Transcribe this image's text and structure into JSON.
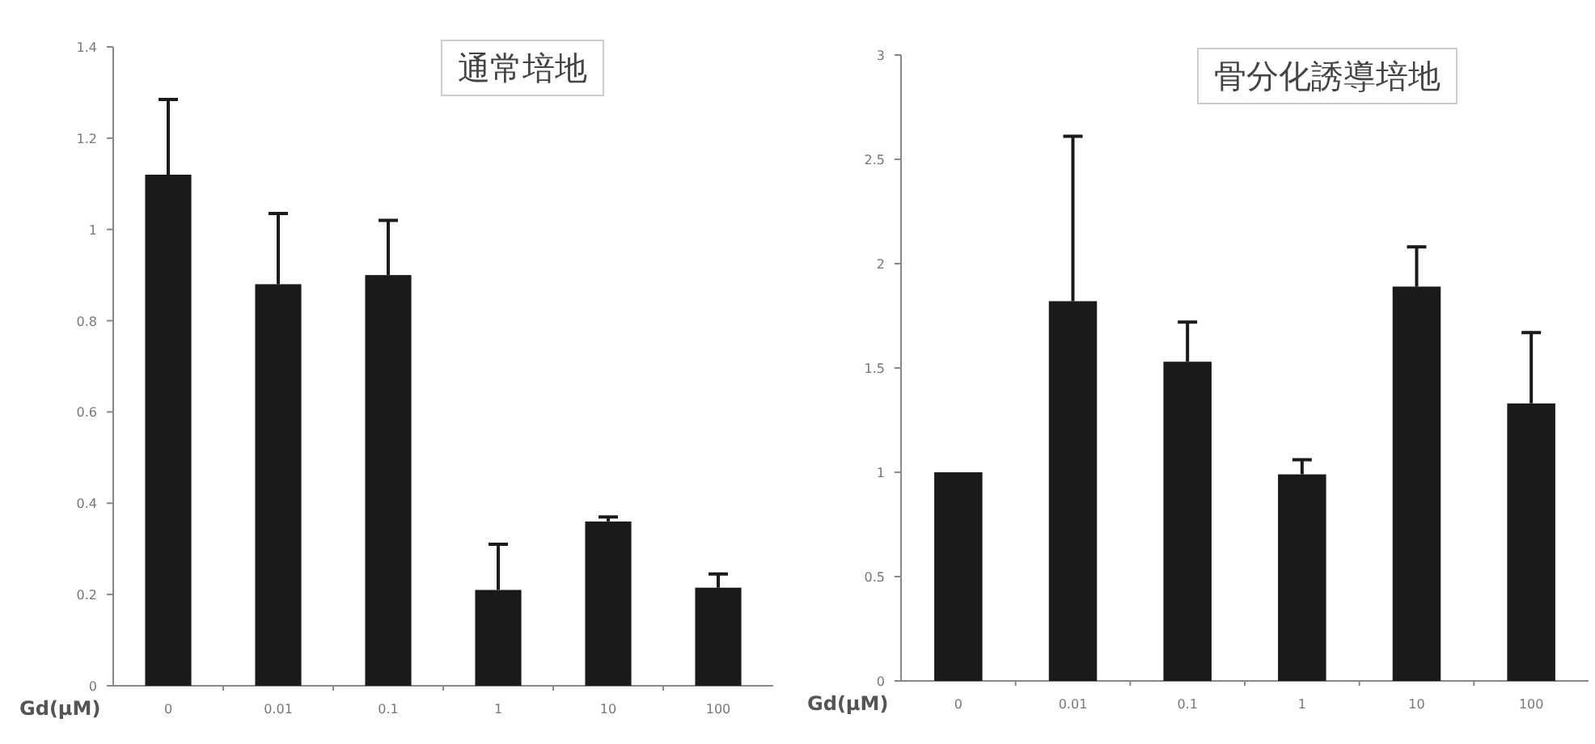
{
  "chart_data": [
    {
      "type": "bar",
      "title": "通常培地",
      "xlabel": "Gd(μM)",
      "categories": [
        "0",
        "0.01",
        "0.1",
        "1",
        "10",
        "100"
      ],
      "values": [
        1.12,
        0.88,
        0.9,
        0.21,
        0.36,
        0.215
      ],
      "errors": [
        0.165,
        0.155,
        0.12,
        0.1,
        0.01,
        0.03
      ],
      "color": "#1a1a1a",
      "ylim": [
        0,
        1.4
      ],
      "yticks": [
        0,
        0.2,
        0.4,
        0.6,
        0.8,
        1,
        1.2,
        1.4
      ]
    },
    {
      "type": "bar",
      "title": "骨分化誘導培地",
      "xlabel": "Gd(μM)",
      "categories": [
        "0",
        "0.01",
        "0.1",
        "1",
        "10",
        "100"
      ],
      "values": [
        1.0,
        1.82,
        1.53,
        0.99,
        1.89,
        1.33
      ],
      "errors": [
        null,
        0.79,
        0.19,
        0.07,
        0.19,
        0.34
      ],
      "color": "#1a1a1a",
      "ylim": [
        0,
        3
      ],
      "yticks": [
        0,
        0.5,
        1,
        1.5,
        2,
        2.5,
        3
      ]
    }
  ]
}
